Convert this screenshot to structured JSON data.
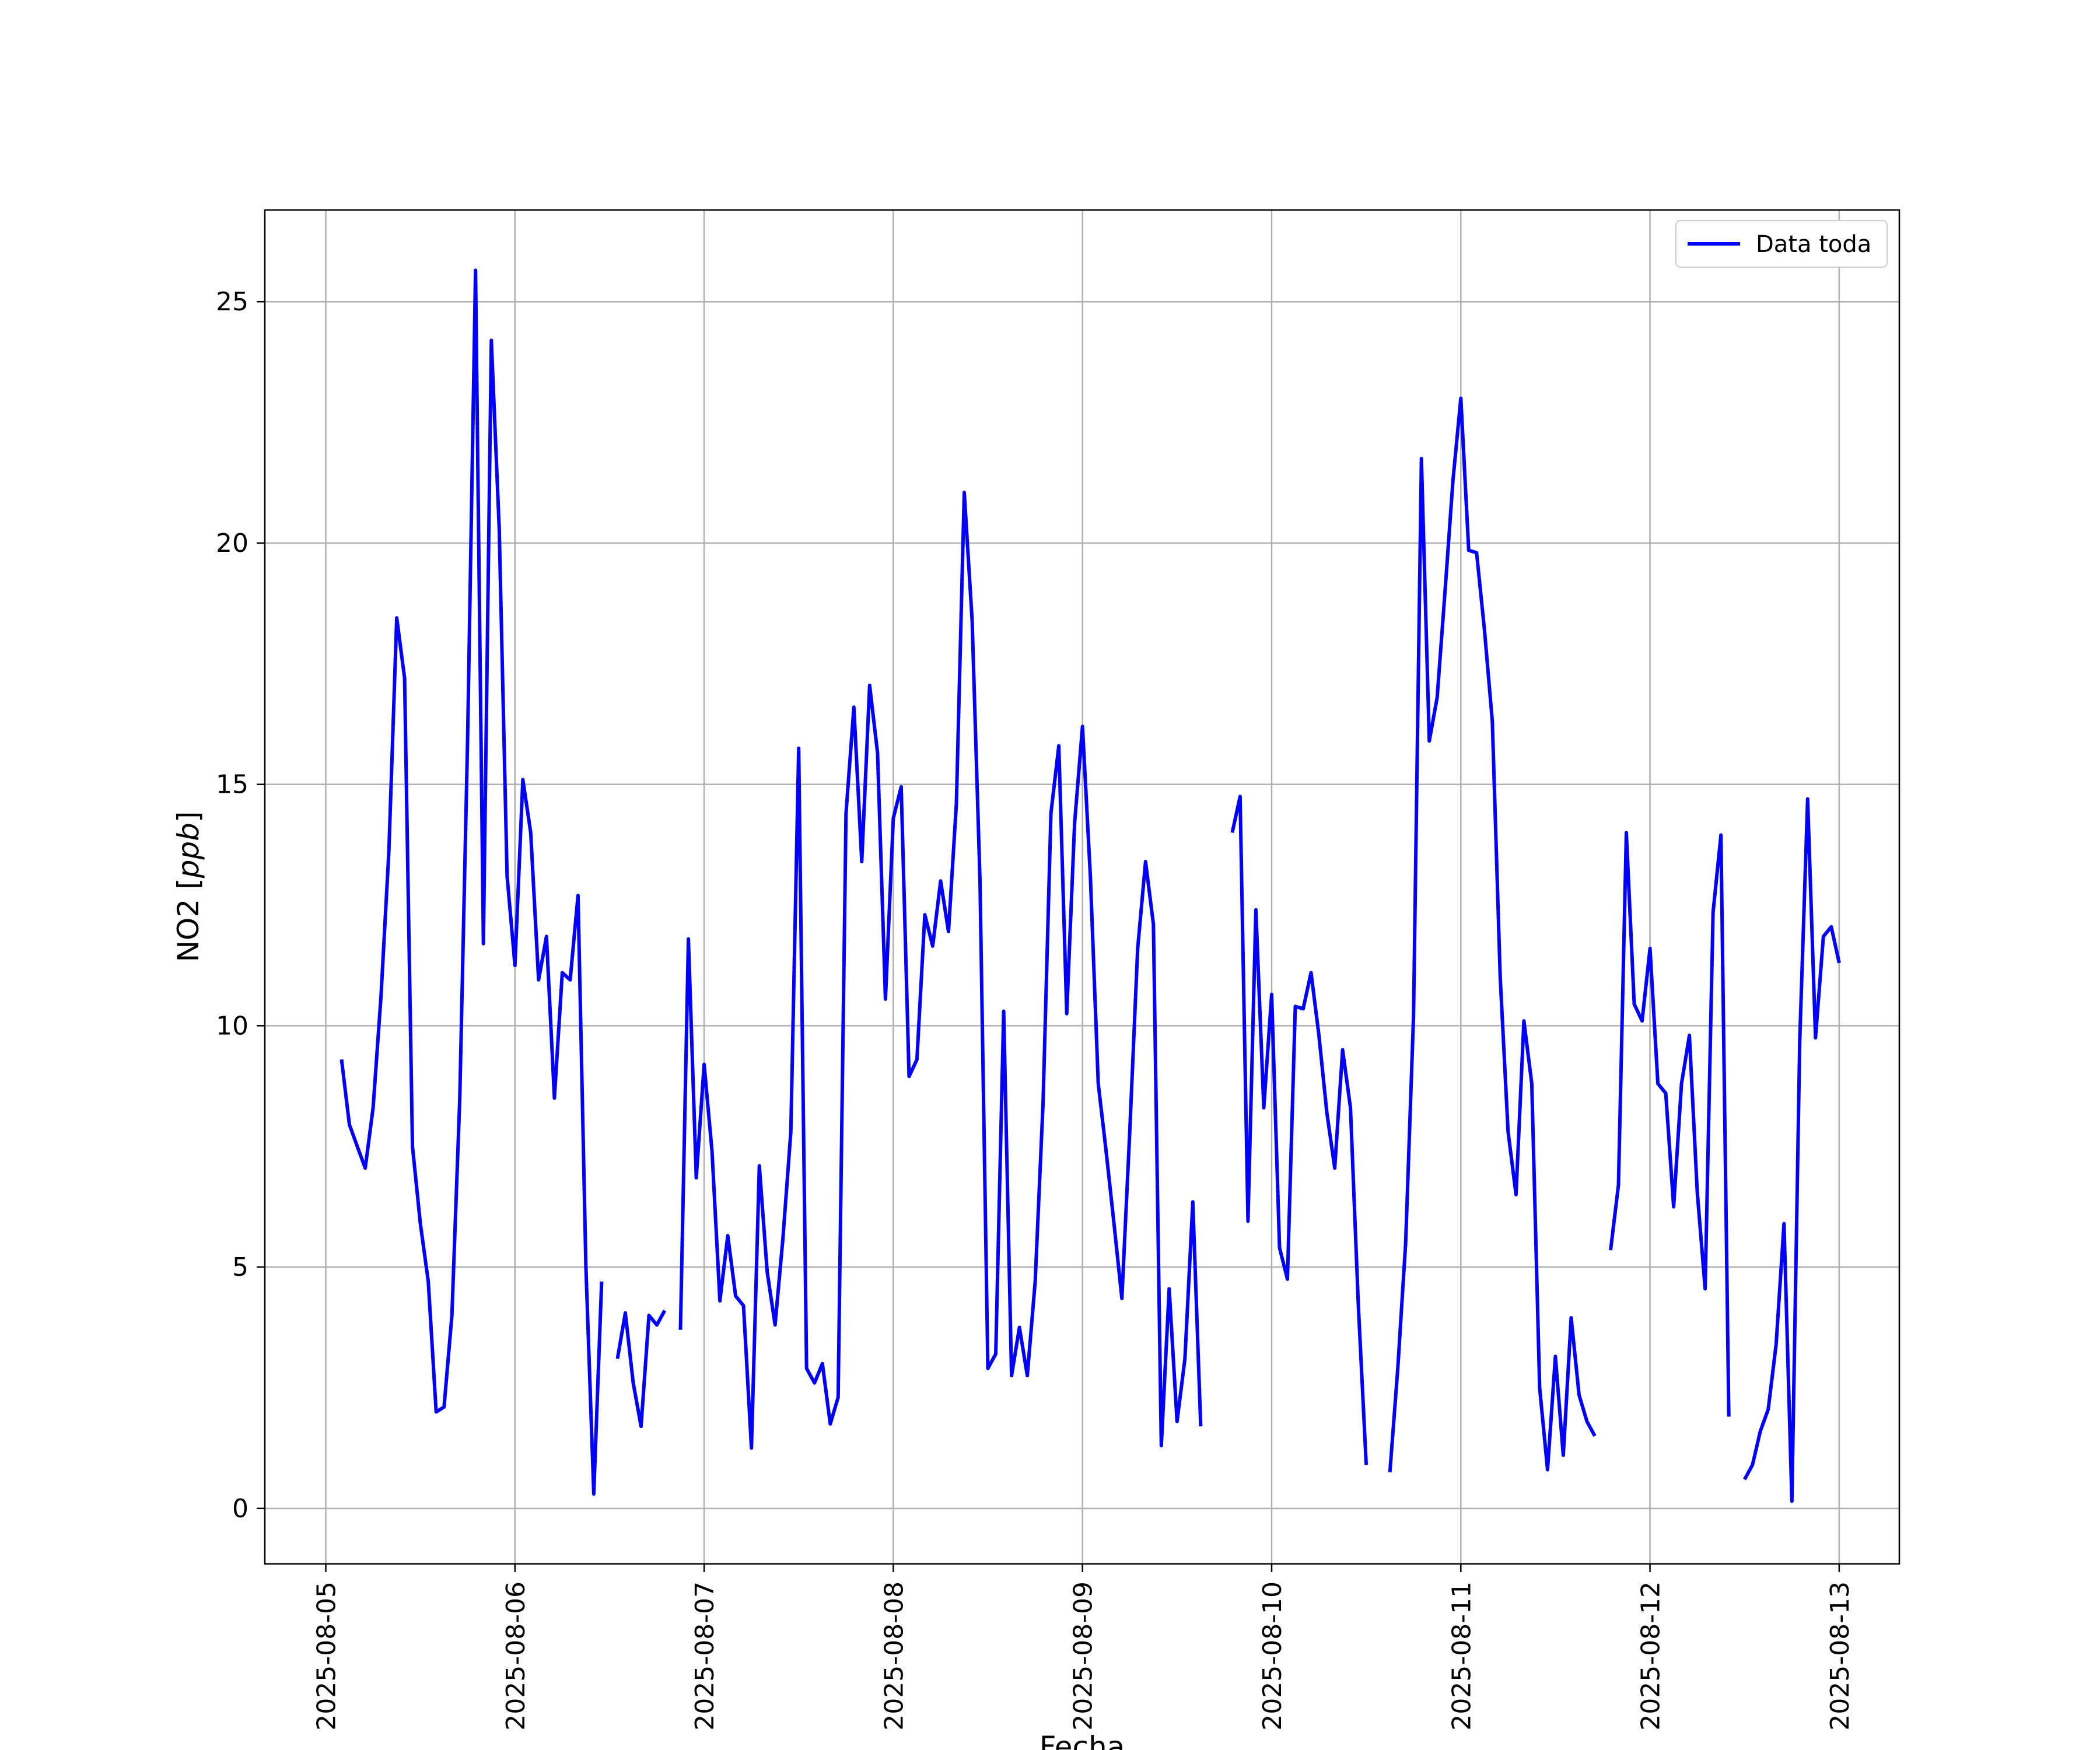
{
  "chart_data": {
    "type": "line",
    "title": "",
    "xlabel": "Fecha",
    "ylabel": "NO2 [ppb]",
    "ylabel_italic_part": "ppb",
    "xlim": [
      "2025-08-04T16:16",
      "2025-08-13T07:38"
    ],
    "ylim": [
      -1.15,
      26.9
    ],
    "grid": true,
    "legend": "top-right",
    "xticks": [
      "2025-08-05",
      "2025-08-06",
      "2025-08-07",
      "2025-08-08",
      "2025-08-09",
      "2025-08-10",
      "2025-08-11",
      "2025-08-12",
      "2025-08-13"
    ],
    "yticks": [
      "0",
      "5",
      "10",
      "15",
      "20",
      "25"
    ],
    "series": [
      {
        "name": "Data toda",
        "color": "#0000ff",
        "segments": [
          [
            [
              "2025-08-05T02:00",
              9.3
            ],
            [
              "2025-08-05T03:00",
              7.95
            ],
            [
              "2025-08-05T04:00",
              7.5
            ],
            [
              "2025-08-05T05:00",
              7.05
            ],
            [
              "2025-08-05T06:00",
              8.3
            ],
            [
              "2025-08-05T07:00",
              10.6
            ],
            [
              "2025-08-05T08:00",
              13.6
            ],
            [
              "2025-08-05T09:00",
              18.45
            ],
            [
              "2025-08-05T10:00",
              17.2
            ],
            [
              "2025-08-05T11:00",
              7.5
            ],
            [
              "2025-08-05T12:00",
              5.9
            ],
            [
              "2025-08-05T13:00",
              4.7
            ],
            [
              "2025-08-05T14:00",
              2.0
            ],
            [
              "2025-08-05T15:00",
              2.1
            ],
            [
              "2025-08-05T16:00",
              4.0
            ],
            [
              "2025-08-05T17:00",
              8.5
            ],
            [
              "2025-08-05T18:00",
              16.0
            ],
            [
              "2025-08-05T19:00",
              25.65
            ],
            [
              "2025-08-05T20:00",
              11.7
            ],
            [
              "2025-08-05T21:00",
              24.2
            ],
            [
              "2025-08-05T22:00",
              20.3
            ],
            [
              "2025-08-05T23:00",
              13.1
            ],
            [
              "2025-08-06T00:00",
              11.25
            ],
            [
              "2025-08-06T01:00",
              15.1
            ],
            [
              "2025-08-06T02:00",
              14.0
            ],
            [
              "2025-08-06T03:00",
              10.95
            ],
            [
              "2025-08-06T04:00",
              11.85
            ],
            [
              "2025-08-06T05:00",
              8.5
            ],
            [
              "2025-08-06T06:00",
              11.1
            ],
            [
              "2025-08-06T07:00",
              10.95
            ],
            [
              "2025-08-06T08:00",
              12.7
            ],
            [
              "2025-08-06T09:00",
              5.0
            ],
            [
              "2025-08-06T10:00",
              0.3
            ],
            [
              "2025-08-06T11:00",
              4.7
            ]
          ],
          [
            [
              "2025-08-06T13:00",
              3.1
            ],
            [
              "2025-08-06T14:00",
              4.05
            ],
            [
              "2025-08-06T15:00",
              2.6
            ],
            [
              "2025-08-06T16:00",
              1.7
            ],
            [
              "2025-08-06T17:00",
              4.0
            ],
            [
              "2025-08-06T18:00",
              3.8
            ],
            [
              "2025-08-06T19:00",
              4.1
            ]
          ],
          [
            [
              "2025-08-06T21:00",
              3.7
            ],
            [
              "2025-08-06T22:00",
              11.8
            ],
            [
              "2025-08-06T23:00",
              6.85
            ],
            [
              "2025-08-07T00:00",
              9.2
            ],
            [
              "2025-08-07T01:00",
              7.4
            ],
            [
              "2025-08-07T02:00",
              4.3
            ],
            [
              "2025-08-07T03:00",
              5.65
            ],
            [
              "2025-08-07T04:00",
              4.4
            ],
            [
              "2025-08-07T05:00",
              4.2
            ],
            [
              "2025-08-07T06:00",
              1.25
            ],
            [
              "2025-08-07T07:00",
              7.1
            ],
            [
              "2025-08-07T08:00",
              4.9
            ],
            [
              "2025-08-07T09:00",
              3.8
            ],
            [
              "2025-08-07T10:00",
              5.6
            ],
            [
              "2025-08-07T11:00",
              7.8
            ],
            [
              "2025-08-07T12:00",
              15.75
            ],
            [
              "2025-08-07T13:00",
              2.9
            ],
            [
              "2025-08-07T14:00",
              2.6
            ],
            [
              "2025-08-07T15:00",
              3.0
            ],
            [
              "2025-08-07T16:00",
              1.75
            ],
            [
              "2025-08-07T17:00",
              2.3
            ],
            [
              "2025-08-07T18:00",
              14.4
            ],
            [
              "2025-08-07T19:00",
              16.6
            ],
            [
              "2025-08-07T20:00",
              13.4
            ],
            [
              "2025-08-07T21:00",
              17.05
            ],
            [
              "2025-08-07T22:00",
              15.65
            ],
            [
              "2025-08-07T23:00",
              10.55
            ],
            [
              "2025-08-08T00:00",
              14.3
            ],
            [
              "2025-08-08T01:00",
              14.95
            ],
            [
              "2025-08-08T02:00",
              8.95
            ],
            [
              "2025-08-08T03:00",
              9.3
            ],
            [
              "2025-08-08T04:00",
              12.3
            ],
            [
              "2025-08-08T05:00",
              11.65
            ],
            [
              "2025-08-08T06:00",
              13.0
            ],
            [
              "2025-08-08T07:00",
              11.95
            ],
            [
              "2025-08-08T08:00",
              14.6
            ],
            [
              "2025-08-08T09:00",
              21.05
            ],
            [
              "2025-08-08T10:00",
              18.4
            ],
            [
              "2025-08-08T11:00",
              13.0
            ],
            [
              "2025-08-08T12:00",
              2.9
            ],
            [
              "2025-08-08T13:00",
              3.2
            ],
            [
              "2025-08-08T14:00",
              10.3
            ],
            [
              "2025-08-08T15:00",
              2.75
            ],
            [
              "2025-08-08T16:00",
              3.75
            ],
            [
              "2025-08-08T17:00",
              2.75
            ],
            [
              "2025-08-08T18:00",
              4.7
            ],
            [
              "2025-08-08T19:00",
              8.4
            ],
            [
              "2025-08-08T20:00",
              14.4
            ],
            [
              "2025-08-08T21:00",
              15.8
            ],
            [
              "2025-08-08T22:00",
              10.25
            ],
            [
              "2025-08-08T23:00",
              14.2
            ],
            [
              "2025-08-09T00:00",
              16.2
            ],
            [
              "2025-08-09T01:00",
              13.1
            ],
            [
              "2025-08-09T02:00",
              8.8
            ],
            [
              "2025-08-09T03:00",
              7.4
            ],
            [
              "2025-08-09T04:00",
              5.9
            ],
            [
              "2025-08-09T05:00",
              4.35
            ],
            [
              "2025-08-09T06:00",
              7.8
            ],
            [
              "2025-08-09T07:00",
              11.6
            ],
            [
              "2025-08-09T08:00",
              13.4
            ],
            [
              "2025-08-09T09:00",
              12.1
            ],
            [
              "2025-08-09T10:00",
              1.3
            ],
            [
              "2025-08-09T11:00",
              4.55
            ],
            [
              "2025-08-09T12:00",
              1.8
            ],
            [
              "2025-08-09T13:00",
              3.1
            ],
            [
              "2025-08-09T14:00",
              6.35
            ],
            [
              "2025-08-09T15:00",
              1.7
            ]
          ],
          [
            [
              "2025-08-09T19:00",
              14.0
            ],
            [
              "2025-08-09T20:00",
              14.75
            ],
            [
              "2025-08-09T21:00",
              5.95
            ],
            [
              "2025-08-09T22:00",
              12.4
            ],
            [
              "2025-08-09T23:00",
              8.3
            ],
            [
              "2025-08-10T00:00",
              10.65
            ],
            [
              "2025-08-10T01:00",
              5.4
            ],
            [
              "2025-08-10T02:00",
              4.75
            ],
            [
              "2025-08-10T03:00",
              10.4
            ],
            [
              "2025-08-10T04:00",
              10.35
            ],
            [
              "2025-08-10T05:00",
              11.1
            ],
            [
              "2025-08-10T06:00",
              9.8
            ],
            [
              "2025-08-10T07:00",
              8.2
            ],
            [
              "2025-08-10T08:00",
              7.05
            ],
            [
              "2025-08-10T09:00",
              9.5
            ],
            [
              "2025-08-10T10:00",
              8.3
            ],
            [
              "2025-08-10T11:00",
              4.2
            ],
            [
              "2025-08-10T12:00",
              0.9
            ]
          ],
          [
            [
              "2025-08-10T15:00",
              0.75
            ],
            [
              "2025-08-10T16:00",
              2.9
            ],
            [
              "2025-08-10T17:00",
              5.5
            ],
            [
              "2025-08-10T18:00",
              10.2
            ],
            [
              "2025-08-10T19:00",
              21.75
            ],
            [
              "2025-08-10T20:00",
              15.9
            ],
            [
              "2025-08-10T21:00",
              16.8
            ],
            [
              "2025-08-10T22:00",
              19.0
            ],
            [
              "2025-08-10T23:00",
              21.3
            ],
            [
              "2025-08-11T00:00",
              23.0
            ],
            [
              "2025-08-11T01:00",
              19.85
            ],
            [
              "2025-08-11T02:00",
              19.8
            ],
            [
              "2025-08-11T03:00",
              18.2
            ],
            [
              "2025-08-11T04:00",
              16.3
            ],
            [
              "2025-08-11T05:00",
              11.0
            ],
            [
              "2025-08-11T06:00",
              7.8
            ],
            [
              "2025-08-11T07:00",
              6.5
            ],
            [
              "2025-08-11T08:00",
              10.1
            ],
            [
              "2025-08-11T09:00",
              8.8
            ],
            [
              "2025-08-11T10:00",
              2.5
            ],
            [
              "2025-08-11T11:00",
              0.8
            ],
            [
              "2025-08-11T12:00",
              3.15
            ],
            [
              "2025-08-11T13:00",
              1.1
            ],
            [
              "2025-08-11T14:00",
              3.95
            ],
            [
              "2025-08-11T15:00",
              2.35
            ],
            [
              "2025-08-11T16:00",
              1.8
            ],
            [
              "2025-08-11T17:00",
              1.5
            ]
          ],
          [
            [
              "2025-08-11T19:00",
              5.35
            ],
            [
              "2025-08-11T20:00",
              6.7
            ],
            [
              "2025-08-11T21:00",
              14.0
            ],
            [
              "2025-08-11T22:00",
              10.45
            ],
            [
              "2025-08-11T23:00",
              10.1
            ],
            [
              "2025-08-12T00:00",
              11.6
            ],
            [
              "2025-08-12T01:00",
              8.8
            ],
            [
              "2025-08-12T02:00",
              8.6
            ],
            [
              "2025-08-12T03:00",
              6.25
            ],
            [
              "2025-08-12T04:00",
              8.8
            ],
            [
              "2025-08-12T05:00",
              9.8
            ],
            [
              "2025-08-12T06:00",
              6.55
            ],
            [
              "2025-08-12T07:00",
              4.55
            ],
            [
              "2025-08-12T08:00",
              12.35
            ],
            [
              "2025-08-12T09:00",
              13.95
            ],
            [
              "2025-08-12T10:00",
              1.9
            ]
          ],
          [
            [
              "2025-08-12T12:00",
              0.6
            ],
            [
              "2025-08-12T13:00",
              0.9
            ],
            [
              "2025-08-12T14:00",
              1.6
            ],
            [
              "2025-08-12T15:00",
              2.05
            ],
            [
              "2025-08-12T16:00",
              3.4
            ],
            [
              "2025-08-12T17:00",
              5.9
            ],
            [
              "2025-08-12T18:00",
              0.15
            ],
            [
              "2025-08-12T19:00",
              9.7
            ],
            [
              "2025-08-12T20:00",
              14.7
            ],
            [
              "2025-08-12T21:00",
              9.75
            ],
            [
              "2025-08-12T22:00",
              11.85
            ],
            [
              "2025-08-12T23:00",
              12.05
            ],
            [
              "2025-08-13T00:00",
              11.3
            ]
          ]
        ]
      }
    ]
  }
}
